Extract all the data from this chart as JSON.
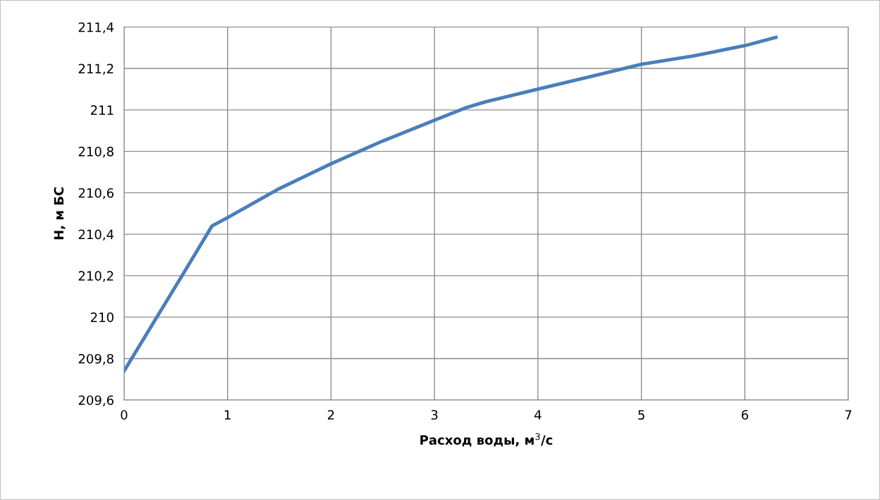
{
  "chart_data": {
    "type": "line",
    "xlabel": "Расход воды, м$^{3}$/с",
    "ylabel": "H, м БС",
    "x": [
      0,
      0.5,
      0.85,
      1,
      1.5,
      2,
      2.5,
      3,
      3.3,
      3.5,
      4,
      4.5,
      5,
      5.5,
      6,
      6.3
    ],
    "series": [
      {
        "color": "#4a7ebb",
        "values": [
          209.74,
          210.15,
          210.44,
          210.48,
          210.62,
          210.74,
          210.85,
          210.95,
          211.01,
          211.04,
          211.1,
          211.16,
          211.22,
          211.26,
          211.31,
          211.35
        ]
      }
    ],
    "xlim": [
      0,
      7
    ],
    "xticks": [
      0,
      1,
      2,
      3,
      4,
      5,
      6,
      7
    ],
    "ylim": [
      209.6,
      211.4
    ],
    "yticks": [
      {
        "value": 209.6,
        "label": "209,6"
      },
      {
        "value": 209.8,
        "label": "209,8"
      },
      {
        "value": 210,
        "label": "210"
      },
      {
        "value": 210.2,
        "label": "210,2"
      },
      {
        "value": 210.4,
        "label": "210,4"
      },
      {
        "value": 210.6,
        "label": "210,6"
      },
      {
        "value": 210.8,
        "label": "210,8"
      },
      {
        "value": 211,
        "label": "211"
      },
      {
        "value": 211.2,
        "label": "211,2"
      },
      {
        "value": 211.4,
        "label": "211,4"
      }
    ],
    "grid": true,
    "marker": "none",
    "line_style": "solid"
  }
}
